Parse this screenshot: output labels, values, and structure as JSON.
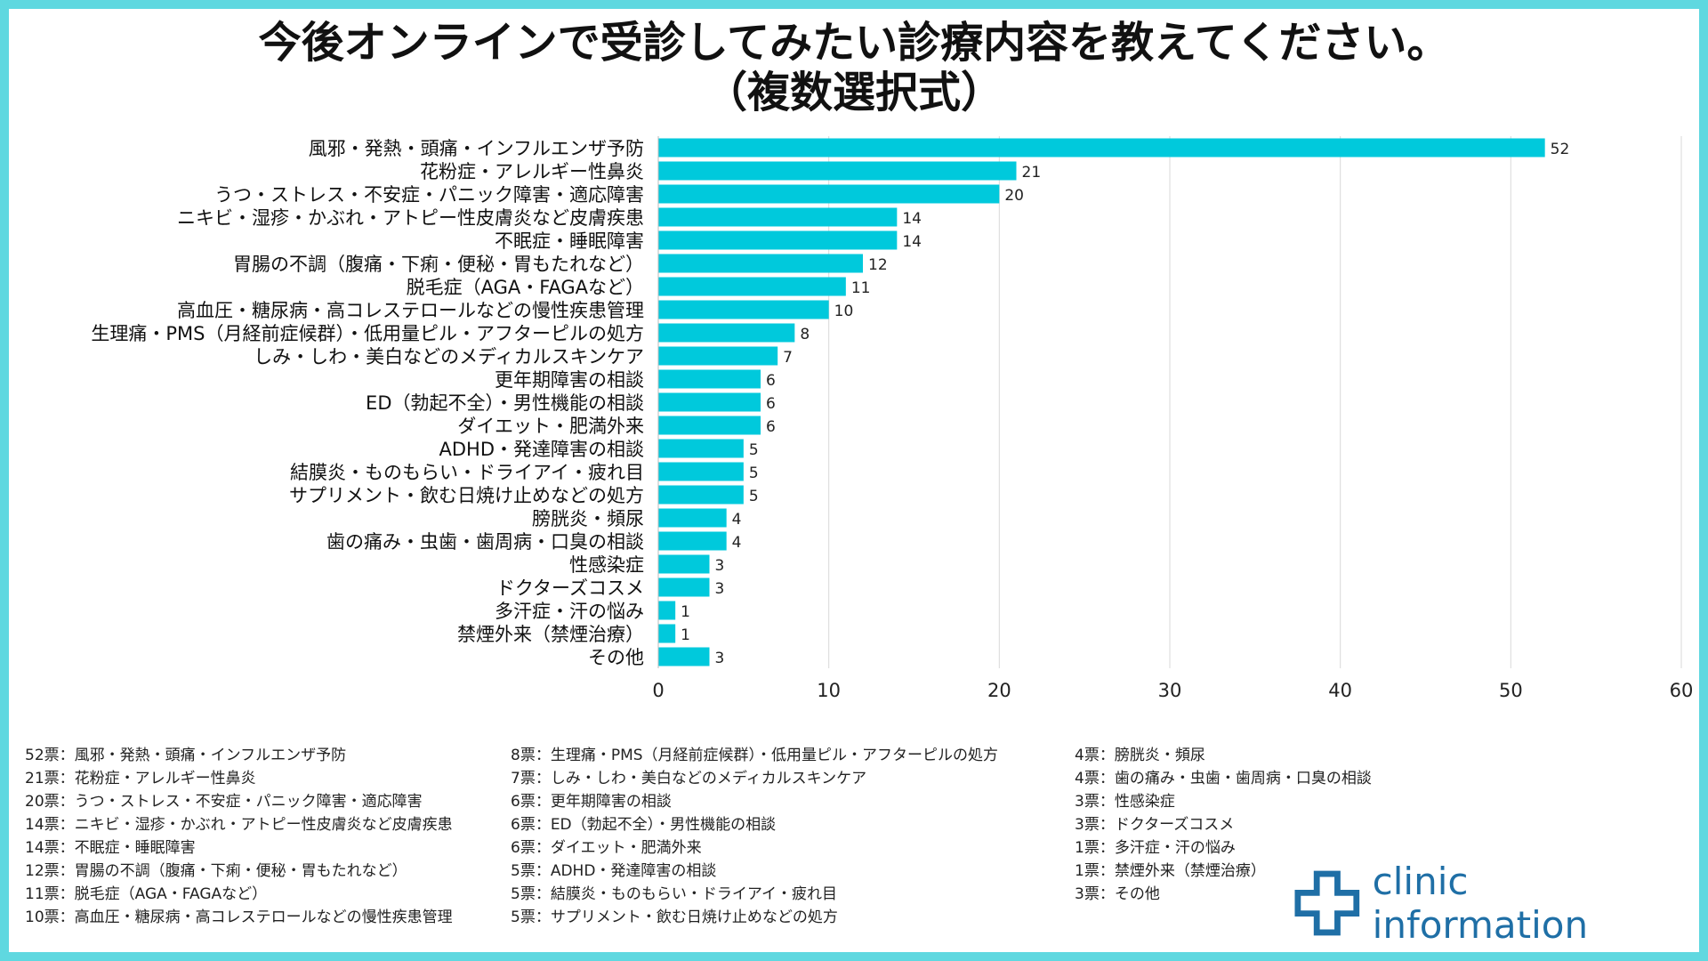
{
  "title_line1": "今後オンラインで受診してみたい診療内容を教えてください。",
  "title_line2": "（複数選択式）",
  "colors": {
    "bar": "#00c9dc",
    "frame": "#5fd8e0",
    "brand": "#1f6fa6",
    "grid": "#d9d9d9"
  },
  "chart_data": {
    "type": "bar",
    "orientation": "horizontal",
    "title": "今後オンラインで受診してみたい診療内容を教えてください。（複数選択式）",
    "xlim": [
      0,
      60
    ],
    "xticks": [
      0,
      10,
      20,
      30,
      40,
      50,
      60
    ],
    "grid": true,
    "categories": [
      "風邪・発熱・頭痛・インフルエンザ予防",
      "花粉症・アレルギー性鼻炎",
      "うつ・ストレス・不安症・パニック障害・適応障害",
      "ニキビ・湿疹・かぶれ・アトピー性皮膚炎など皮膚疾患",
      "不眠症・睡眠障害",
      "胃腸の不調（腹痛・下痢・便秘・胃もたれなど）",
      "脱毛症（AGA・FAGAなど）",
      "高血圧・糖尿病・高コレステロールなどの慢性疾患管理",
      "生理痛・PMS（月経前症候群）・低用量ピル・アフターピルの処方",
      "しみ・しわ・美白などのメディカルスキンケア",
      "更年期障害の相談",
      "ED（勃起不全）・男性機能の相談",
      "ダイエット・肥満外来",
      "ADHD・発達障害の相談",
      "結膜炎・ものもらい・ドライアイ・疲れ目",
      "サプリメント・飲む日焼け止めなどの処方",
      "膀胱炎・頻尿",
      "歯の痛み・虫歯・歯周病・口臭の相談",
      "性感染症",
      "ドクターズコスメ",
      "多汗症・汗の悩み",
      "禁煙外来（禁煙治療）",
      "その他"
    ],
    "values": [
      52,
      21,
      20,
      14,
      14,
      12,
      11,
      10,
      8,
      7,
      6,
      6,
      6,
      5,
      5,
      5,
      4,
      4,
      3,
      3,
      1,
      1,
      3
    ]
  },
  "legend": {
    "col1": [
      "52票：風邪・発熱・頭痛・インフルエンザ予防",
      "21票：花粉症・アレルギー性鼻炎",
      "20票：うつ・ストレス・不安症・パニック障害・適応障害",
      "14票：ニキビ・湿疹・かぶれ・アトピー性皮膚炎など皮膚疾患",
      "14票：不眠症・睡眠障害",
      "12票：胃腸の不調（腹痛・下痢・便秘・胃もたれなど）",
      "11票：脱毛症（AGA・FAGAなど）",
      "10票：高血圧・糖尿病・高コレステロールなどの慢性疾患管理"
    ],
    "col2": [
      "8票：生理痛・PMS（月経前症候群）・低用量ピル・アフターピルの処方",
      "7票：しみ・しわ・美白などのメディカルスキンケア",
      "6票：更年期障害の相談",
      "6票：ED（勃起不全）・男性機能の相談",
      "6票：ダイエット・肥満外来",
      "5票：ADHD・発達障害の相談",
      "5票：結膜炎・ものもらい・ドライアイ・疲れ目",
      "5票：サプリメント・飲む日焼け止めなどの処方"
    ],
    "col3": [
      "4票：膀胱炎・頻尿",
      "4票：歯の痛み・虫歯・歯周病・口臭の相談",
      "3票：性感染症",
      "3票：ドクターズコスメ",
      "1票：多汗症・汗の悩み",
      "1票：禁煙外来（禁煙治療）",
      "3票：その他"
    ]
  },
  "brand": {
    "name": "clinic information",
    "icon": "medical-cross-logo-icon"
  }
}
